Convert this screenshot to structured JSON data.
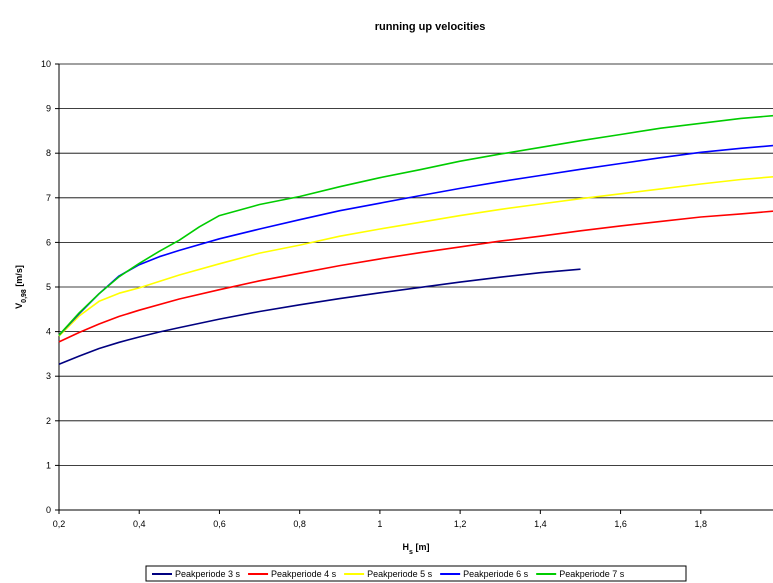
{
  "chart_data": {
    "type": "line",
    "title": "running up velocities",
    "xlabel": "H_s [m]",
    "ylabel": "V_0,98 [m/s]",
    "xlim": [
      0.2,
      1.98
    ],
    "ylim": [
      0,
      10
    ],
    "x_ticks": [
      "0,2",
      "0,4",
      "0,6",
      "0,8",
      "1",
      "1,2",
      "1,4",
      "1,6",
      "1,8"
    ],
    "y_ticks": [
      "0",
      "1",
      "2",
      "3",
      "4",
      "5",
      "6",
      "7",
      "8",
      "9",
      "10"
    ],
    "grid": "horizontal major gridlines",
    "legend_position": "bottom",
    "series": [
      {
        "name": "Peakperiode 3 s",
        "color": "#000080",
        "x": [
          0.2,
          0.25,
          0.3,
          0.35,
          0.4,
          0.45,
          0.5,
          0.6,
          0.7,
          0.8,
          0.9,
          1.0,
          1.1,
          1.2,
          1.3,
          1.4,
          1.5
        ],
        "y": [
          3.27,
          3.45,
          3.62,
          3.76,
          3.88,
          3.99,
          4.09,
          4.28,
          4.45,
          4.6,
          4.74,
          4.87,
          4.99,
          5.11,
          5.22,
          5.32,
          5.4
        ]
      },
      {
        "name": "Peakperiode 4 s",
        "color": "#ff0000",
        "x": [
          0.2,
          0.25,
          0.3,
          0.35,
          0.4,
          0.5,
          0.6,
          0.7,
          0.8,
          0.9,
          1.0,
          1.1,
          1.2,
          1.3,
          1.4,
          1.5,
          1.6,
          1.7,
          1.8,
          1.9,
          1.98
        ],
        "y": [
          3.77,
          3.98,
          4.17,
          4.34,
          4.48,
          4.73,
          4.94,
          5.14,
          5.31,
          5.48,
          5.63,
          5.77,
          5.9,
          6.03,
          6.14,
          6.26,
          6.37,
          6.47,
          6.57,
          6.64,
          6.7
        ]
      },
      {
        "name": "Peakperiode 5 s",
        "color": "#ffff00",
        "x": [
          0.2,
          0.25,
          0.3,
          0.35,
          0.4,
          0.5,
          0.6,
          0.7,
          0.8,
          0.9,
          1.0,
          1.1,
          1.2,
          1.3,
          1.4,
          1.5,
          1.6,
          1.7,
          1.8,
          1.9,
          1.98
        ],
        "y": [
          3.9,
          4.35,
          4.68,
          4.86,
          4.98,
          5.27,
          5.52,
          5.76,
          5.94,
          6.14,
          6.3,
          6.45,
          6.6,
          6.74,
          6.86,
          6.98,
          7.09,
          7.2,
          7.31,
          7.41,
          7.47
        ]
      },
      {
        "name": "Peakperiode 6 s",
        "color": "#0000ff",
        "x": [
          0.2,
          0.25,
          0.3,
          0.35,
          0.4,
          0.45,
          0.5,
          0.6,
          0.7,
          0.8,
          0.9,
          1.0,
          1.1,
          1.2,
          1.3,
          1.4,
          1.5,
          1.6,
          1.7,
          1.8,
          1.9,
          1.98
        ],
        "y": [
          3.92,
          4.4,
          4.85,
          5.25,
          5.5,
          5.68,
          5.82,
          6.08,
          6.3,
          6.51,
          6.71,
          6.88,
          7.05,
          7.21,
          7.36,
          7.5,
          7.64,
          7.77,
          7.9,
          8.02,
          8.11,
          8.17
        ]
      },
      {
        "name": "Peakperiode 7 s",
        "color": "#00cc00",
        "x": [
          0.2,
          0.25,
          0.3,
          0.35,
          0.4,
          0.45,
          0.5,
          0.55,
          0.6,
          0.7,
          0.8,
          0.9,
          1.0,
          1.1,
          1.2,
          1.3,
          1.4,
          1.5,
          1.6,
          1.7,
          1.8,
          1.9,
          1.98
        ],
        "y": [
          3.92,
          4.42,
          4.85,
          5.23,
          5.53,
          5.8,
          6.05,
          6.35,
          6.6,
          6.85,
          7.03,
          7.25,
          7.45,
          7.63,
          7.82,
          7.98,
          8.13,
          8.28,
          8.42,
          8.56,
          8.67,
          8.78,
          8.84
        ]
      }
    ]
  }
}
